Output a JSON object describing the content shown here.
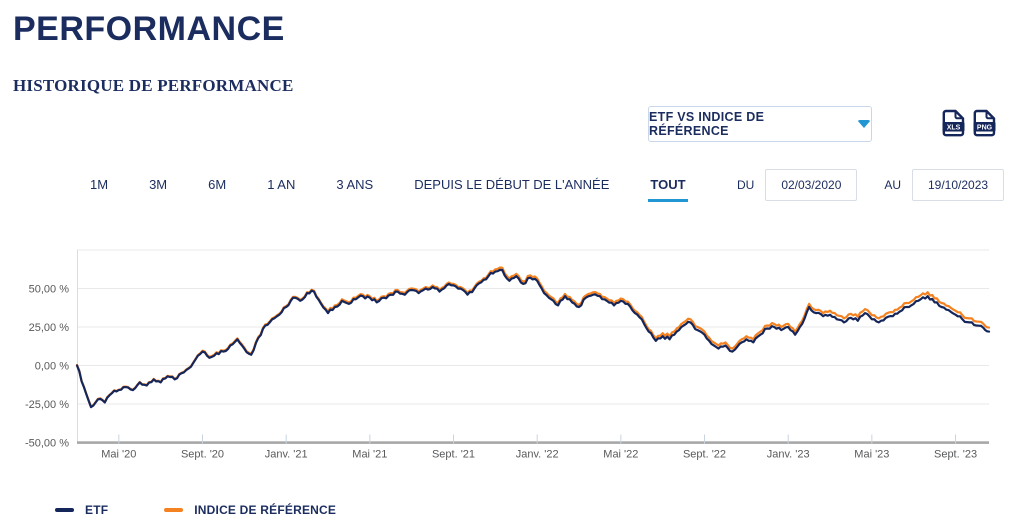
{
  "page": {
    "title": "PERFORMANCE",
    "subtitle": "HISTORIQUE DE PERFORMANCE"
  },
  "controls": {
    "series_select_value": "ETF VS INDICE DE RÉFÉRENCE",
    "export_buttons": [
      "XLS",
      "PNG"
    ],
    "range_tabs": [
      "1M",
      "3M",
      "6M",
      "1 AN",
      "3 ANS",
      "DEPUIS LE DÉBUT DE L'ANNÉE",
      "TOUT"
    ],
    "active_tab": "TOUT",
    "date_from_label": "DU",
    "date_from_value": "02/03/2020",
    "date_to_label": "AU",
    "date_to_value": "19/10/2023"
  },
  "colors": {
    "navy_text": "#1b2c5e",
    "etf_line": "#15265b",
    "index_line": "#f58220",
    "accent_blue": "#2196d3",
    "axis_text": "#58595b",
    "grid_line": "#e9e9e9",
    "axis_bar": "#a8a8a8",
    "tick_mark": "#c9d3df"
  },
  "legend": [
    {
      "label": "ETF",
      "color": "#15265b"
    },
    {
      "label": "INDICE DE RÉFÉRENCE",
      "color": "#f58220"
    }
  ],
  "chart_data": {
    "type": "line",
    "title": "",
    "xlabel": "",
    "ylabel": "",
    "grid": true,
    "legend_position": "bottom-left",
    "x_unit": "months since 02/03/2020",
    "period_start": "02/03/2020",
    "period_end": "19/10/2023",
    "ylim": [
      -50,
      75
    ],
    "y_tick_values": [
      50,
      25,
      0,
      -25,
      -50
    ],
    "y_tick_labels": [
      "50,00 %",
      "25,00 %",
      "0,00 %",
      "-25,00 %",
      "-50,00 %"
    ],
    "y_gridline_values": [
      75,
      50,
      25,
      0,
      -25
    ],
    "x_tick_labels": [
      "Mai '20",
      "Sept. '20",
      "Janv. '21",
      "Mai '21",
      "Sept. '21",
      "Janv. '22",
      "Mai '22",
      "Sept. '22",
      "Janv. '23",
      "Mai '23",
      "Sept. '23"
    ],
    "x_tick_months": [
      2,
      6,
      10,
      14,
      18,
      22,
      26,
      30,
      34,
      38,
      42
    ],
    "x_range_months": [
      0,
      43.6
    ],
    "x": [
      0,
      0.33,
      0.67,
      1,
      1.33,
      1.67,
      2,
      2.33,
      2.67,
      3,
      3.33,
      3.67,
      4,
      4.33,
      4.67,
      5,
      5.33,
      5.67,
      6,
      6.33,
      6.67,
      7,
      7.33,
      7.67,
      8,
      8.33,
      8.67,
      9,
      9.33,
      9.67,
      10,
      10.33,
      10.67,
      11,
      11.33,
      11.67,
      12,
      12.33,
      12.67,
      13,
      13.33,
      13.67,
      14,
      14.33,
      14.67,
      15,
      15.33,
      15.67,
      16,
      16.33,
      16.67,
      17,
      17.33,
      17.67,
      18,
      18.33,
      18.67,
      19,
      19.33,
      19.67,
      20,
      20.33,
      20.67,
      21,
      21.33,
      21.67,
      22,
      22.33,
      22.67,
      23,
      23.33,
      23.67,
      24,
      24.33,
      24.67,
      25,
      25.33,
      25.67,
      26,
      26.33,
      26.67,
      27,
      27.33,
      27.67,
      28,
      28.33,
      28.67,
      29,
      29.33,
      29.67,
      30,
      30.33,
      30.67,
      31,
      31.33,
      31.67,
      32,
      32.33,
      32.67,
      33,
      33.33,
      33.67,
      34,
      34.33,
      34.67,
      35,
      35.33,
      35.67,
      36,
      36.33,
      36.67,
      37,
      37.33,
      37.67,
      38,
      38.33,
      38.67,
      39,
      39.33,
      39.67,
      40,
      40.33,
      40.67,
      41,
      41.33,
      41.67,
      42,
      42.33,
      42.67,
      43,
      43.33,
      43.6
    ],
    "series": [
      {
        "name": "INDICE DE RÉFÉRENCE",
        "color": "#f58220",
        "unit": "%",
        "values": [
          0.3,
          -13.7,
          -26.7,
          -21.7,
          -23.7,
          -17.7,
          -15.7,
          -13.7,
          -15.7,
          -10.7,
          -12.7,
          -8.7,
          -10.7,
          -6.7,
          -8.7,
          -4.7,
          -1.7,
          4.3,
          9.6,
          5.6,
          8.6,
          9.6,
          13.6,
          17.6,
          11.6,
          7.6,
          18.6,
          26.6,
          30.6,
          33.6,
          38.6,
          44.6,
          42.6,
          47.6,
          48.6,
          40.6,
          35,
          39,
          43,
          41,
          44,
          46,
          45,
          42,
          45,
          47,
          49,
          47,
          50,
          48,
          51,
          52,
          49,
          53,
          53,
          51,
          47,
          51,
          55,
          59,
          62.5,
          63.5,
          56.5,
          59.5,
          54.5,
          58.5,
          56.5,
          48.5,
          44.5,
          40.5,
          46.5,
          42.5,
          39.5,
          45.5,
          47.5,
          46.5,
          43.5,
          40.5,
          43.5,
          41.5,
          35.5,
          31.5,
          23.5,
          17.5,
          21,
          19,
          24,
          28,
          30,
          25,
          22,
          16,
          13,
          15,
          11,
          16,
          19,
          17,
          22,
          26,
          27,
          25,
          27,
          22,
          29,
          40,
          36,
          34,
          35.6,
          32.6,
          30.6,
          33.6,
          31.6,
          36.6,
          32.6,
          30.6,
          33.6,
          34.6,
          37.6,
          40.6,
          42.6,
          45.6,
          47.6,
          43.6,
          40.6,
          38.6,
          35.6,
          32.6,
          30.6,
          28.6,
          27.1,
          24.6
        ]
      },
      {
        "name": "ETF",
        "color": "#15265b",
        "unit": "%",
        "values": [
          0,
          -14,
          -27,
          -22,
          -24,
          -18,
          -16,
          -14,
          -16,
          -11,
          -13,
          -9,
          -11,
          -7,
          -9,
          -5,
          -2,
          4,
          9,
          5,
          8,
          9,
          13,
          17,
          11,
          7,
          18,
          26,
          30,
          33,
          38,
          44,
          42,
          47,
          48,
          40,
          34,
          38,
          42,
          40,
          43,
          45,
          44,
          41,
          44,
          46,
          48,
          46,
          49,
          47,
          50,
          51,
          48,
          52,
          52,
          50,
          46,
          50,
          54,
          58,
          61,
          62,
          55,
          58,
          53,
          57,
          55,
          47,
          43,
          39,
          45,
          41,
          38,
          44,
          46,
          45,
          42,
          39,
          42,
          40,
          34,
          30,
          22,
          16,
          19,
          17,
          22,
          26,
          28,
          23,
          20,
          14,
          11,
          13,
          9,
          14,
          17,
          15,
          20,
          24,
          25,
          23,
          25,
          20,
          27,
          38,
          34,
          32,
          33,
          30,
          28,
          31,
          29,
          34,
          30,
          28,
          31,
          32,
          35,
          38,
          40,
          43,
          45,
          41,
          38,
          36,
          33,
          30,
          28,
          26,
          24.5,
          22
        ]
      }
    ]
  }
}
